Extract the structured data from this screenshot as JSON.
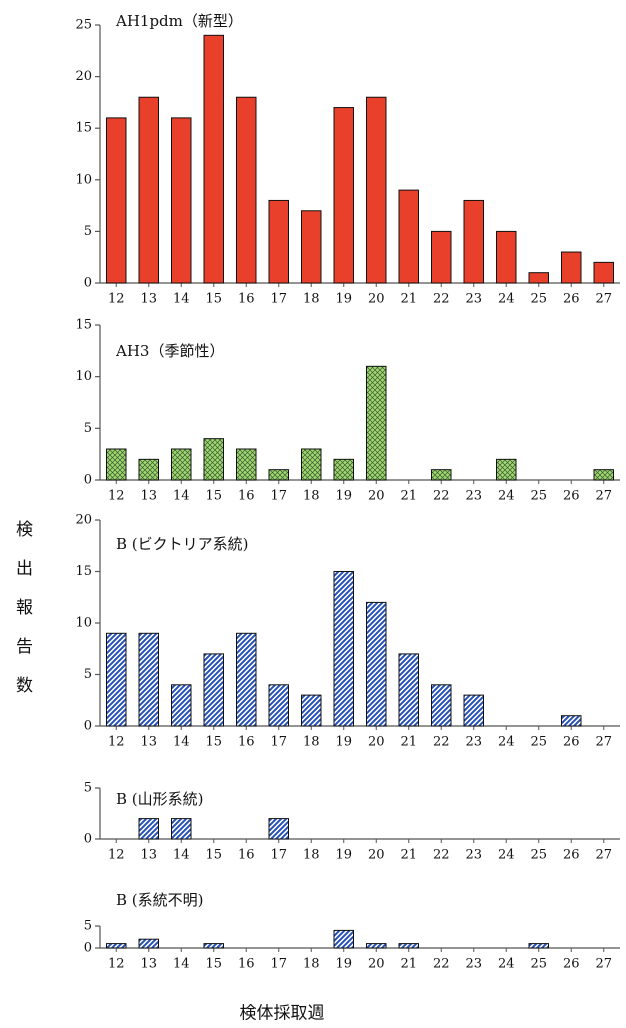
{
  "chart_data": [
    {
      "type": "bar",
      "title": "AH1pdm（新型）",
      "categories": [
        "12",
        "13",
        "14",
        "15",
        "16",
        "17",
        "18",
        "19",
        "20",
        "21",
        "22",
        "23",
        "24",
        "25",
        "26",
        "27"
      ],
      "values": [
        16,
        18,
        16,
        24,
        18,
        8,
        7,
        17,
        18,
        9,
        5,
        8,
        5,
        1,
        3,
        2
      ],
      "color": "#e8402a",
      "hatch": "none",
      "ylim": [
        0,
        25
      ],
      "yticks": [
        0,
        5,
        10,
        15,
        20,
        25
      ]
    },
    {
      "type": "bar",
      "title": "AH3（季節性）",
      "categories": [
        "12",
        "13",
        "14",
        "15",
        "16",
        "17",
        "18",
        "19",
        "20",
        "21",
        "22",
        "23",
        "24",
        "25",
        "26",
        "27"
      ],
      "values": [
        3,
        2,
        3,
        4,
        3,
        1,
        3,
        2,
        11,
        0,
        1,
        0,
        2,
        0,
        0,
        1
      ],
      "color": "#9fd873",
      "hatch": "cross",
      "ylim": [
        0,
        15
      ],
      "yticks": [
        0,
        5,
        10,
        15
      ]
    },
    {
      "type": "bar",
      "title": "B (ビクトリア系統)",
      "categories": [
        "12",
        "13",
        "14",
        "15",
        "16",
        "17",
        "18",
        "19",
        "20",
        "21",
        "22",
        "23",
        "24",
        "25",
        "26",
        "27"
      ],
      "values": [
        9,
        9,
        4,
        7,
        9,
        4,
        3,
        15,
        12,
        7,
        4,
        3,
        0,
        0,
        1,
        0
      ],
      "color": "#2550b8",
      "hatch": "diagonal",
      "ylim": [
        0,
        20
      ],
      "yticks": [
        0,
        5,
        10,
        15,
        20
      ]
    },
    {
      "type": "bar",
      "title": "B (山形系統)",
      "categories": [
        "12",
        "13",
        "14",
        "15",
        "16",
        "17",
        "18",
        "19",
        "20",
        "21",
        "22",
        "23",
        "24",
        "25",
        "26",
        "27"
      ],
      "values": [
        0,
        2,
        2,
        0,
        0,
        2,
        0,
        0,
        0,
        0,
        0,
        0,
        0,
        0,
        0,
        0
      ],
      "color": "#2550b8",
      "hatch": "diagonal",
      "ylim": [
        0,
        5
      ],
      "yticks": [
        0,
        5
      ]
    },
    {
      "type": "bar",
      "title": "B (系統不明)",
      "categories": [
        "12",
        "13",
        "14",
        "15",
        "16",
        "17",
        "18",
        "19",
        "20",
        "21",
        "22",
        "23",
        "24",
        "25",
        "26",
        "27"
      ],
      "values": [
        1,
        2,
        0,
        1,
        0,
        0,
        0,
        4,
        1,
        1,
        0,
        0,
        0,
        1,
        0,
        0
      ],
      "color": "#2550b8",
      "hatch": "diagonal",
      "ylim": [
        0,
        5
      ],
      "yticks": [
        0,
        5
      ]
    }
  ],
  "ylabel": "検出報告数",
  "xlabel": "検体採取週"
}
